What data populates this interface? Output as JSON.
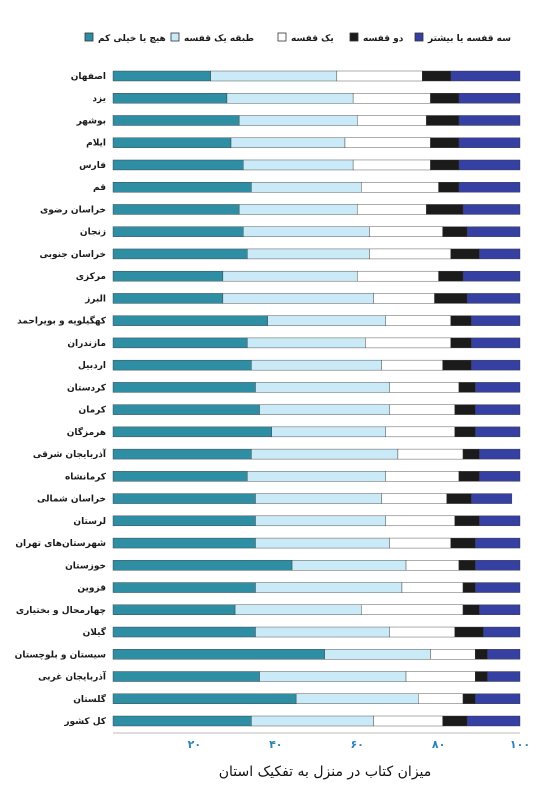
{
  "chart_data": {
    "type": "bar",
    "orientation": "horizontal",
    "stacked": true,
    "percent": true,
    "xlabel": "میزان کتاب در منزل به تفکیک استان",
    "ylabel": "",
    "xlim": [
      0,
      100
    ],
    "xticks": [
      {
        "value": 20,
        "label": "۲۰"
      },
      {
        "value": 40,
        "label": "۴۰"
      },
      {
        "value": 60,
        "label": "۶۰"
      },
      {
        "value": 80,
        "label": "۸۰"
      },
      {
        "value": 100,
        "label": "۱۰۰"
      }
    ],
    "grid": false,
    "legend_position": "top",
    "categories": [
      "اصفهان",
      "یزد",
      "بوشهر",
      "ایلام",
      "فارس",
      "قم",
      "خراسان رضوی",
      "زنجان",
      "خراسان جنوبی",
      "مرکزی",
      "البرز",
      "کهگیلویه و بویراحمد",
      "مازندران",
      "اردبیل",
      "کردستان",
      "کرمان",
      "هرمزگان",
      "آذربایجان شرقی",
      "کرمانشاه",
      "خراسان شمالی",
      "لرستان",
      "شهرستان‌های تهران",
      "خوزستان",
      "قزوین",
      "چهارمحال و بختیاری",
      "گیلان",
      "سیستان و بلوچستان",
      "آذربایجان غربی",
      "گلستان",
      "کل کشور"
    ],
    "series": [
      {
        "name": "هیچ یا خیلی کم",
        "color": "#2e8ea3",
        "values": [
          24,
          28,
          31,
          29,
          32,
          34,
          31,
          32,
          33,
          27,
          27,
          38,
          33,
          34,
          35,
          36,
          39,
          34,
          33,
          35,
          35,
          35,
          44,
          35,
          30,
          35,
          52,
          36,
          45,
          34
        ]
      },
      {
        "name": "طبقه یک قفسه",
        "color": "#c9eaf6",
        "values": [
          31,
          31,
          29,
          28,
          27,
          27,
          29,
          31,
          30,
          33,
          37,
          29,
          29,
          32,
          33,
          32,
          28,
          36,
          34,
          31,
          32,
          33,
          28,
          36,
          31,
          33,
          26,
          36,
          30,
          30
        ]
      },
      {
        "name": "یک قفسه",
        "color": "#ffffff",
        "values": [
          21,
          19,
          17,
          21,
          19,
          19,
          17,
          18,
          20,
          20,
          15,
          16,
          21,
          15,
          17,
          16,
          17,
          16,
          18,
          16,
          17,
          15,
          13,
          15,
          25,
          16,
          11,
          17,
          11,
          17
        ]
      },
      {
        "name": "دو قفسه",
        "color": "#1b1b1b",
        "values": [
          7,
          7,
          8,
          7,
          7,
          5,
          9,
          6,
          7,
          6,
          8,
          5,
          5,
          7,
          4,
          5,
          5,
          4,
          5,
          6,
          6,
          6,
          4,
          3,
          4,
          7,
          3,
          3,
          3,
          6
        ]
      },
      {
        "name": "سه قفسه یا بیشتر",
        "color": "#3540a2",
        "values": [
          17,
          15,
          15,
          15,
          15,
          15,
          14,
          13,
          10,
          14,
          13,
          12,
          12,
          12,
          11,
          11,
          11,
          10,
          10,
          10,
          10,
          11,
          11,
          11,
          10,
          9,
          8,
          8,
          11,
          13
        ]
      }
    ]
  }
}
